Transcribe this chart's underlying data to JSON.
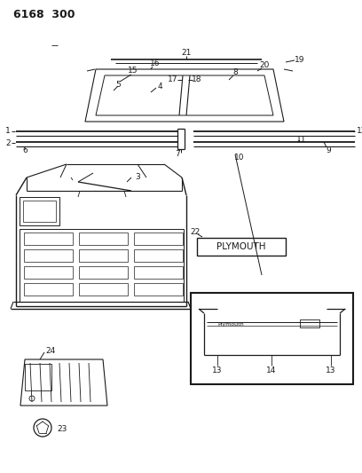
{
  "title": "6168  300",
  "bg_color": "#ffffff",
  "line_color": "#1a1a1a",
  "fig_width": 4.08,
  "fig_height": 5.33,
  "dpi": 100
}
